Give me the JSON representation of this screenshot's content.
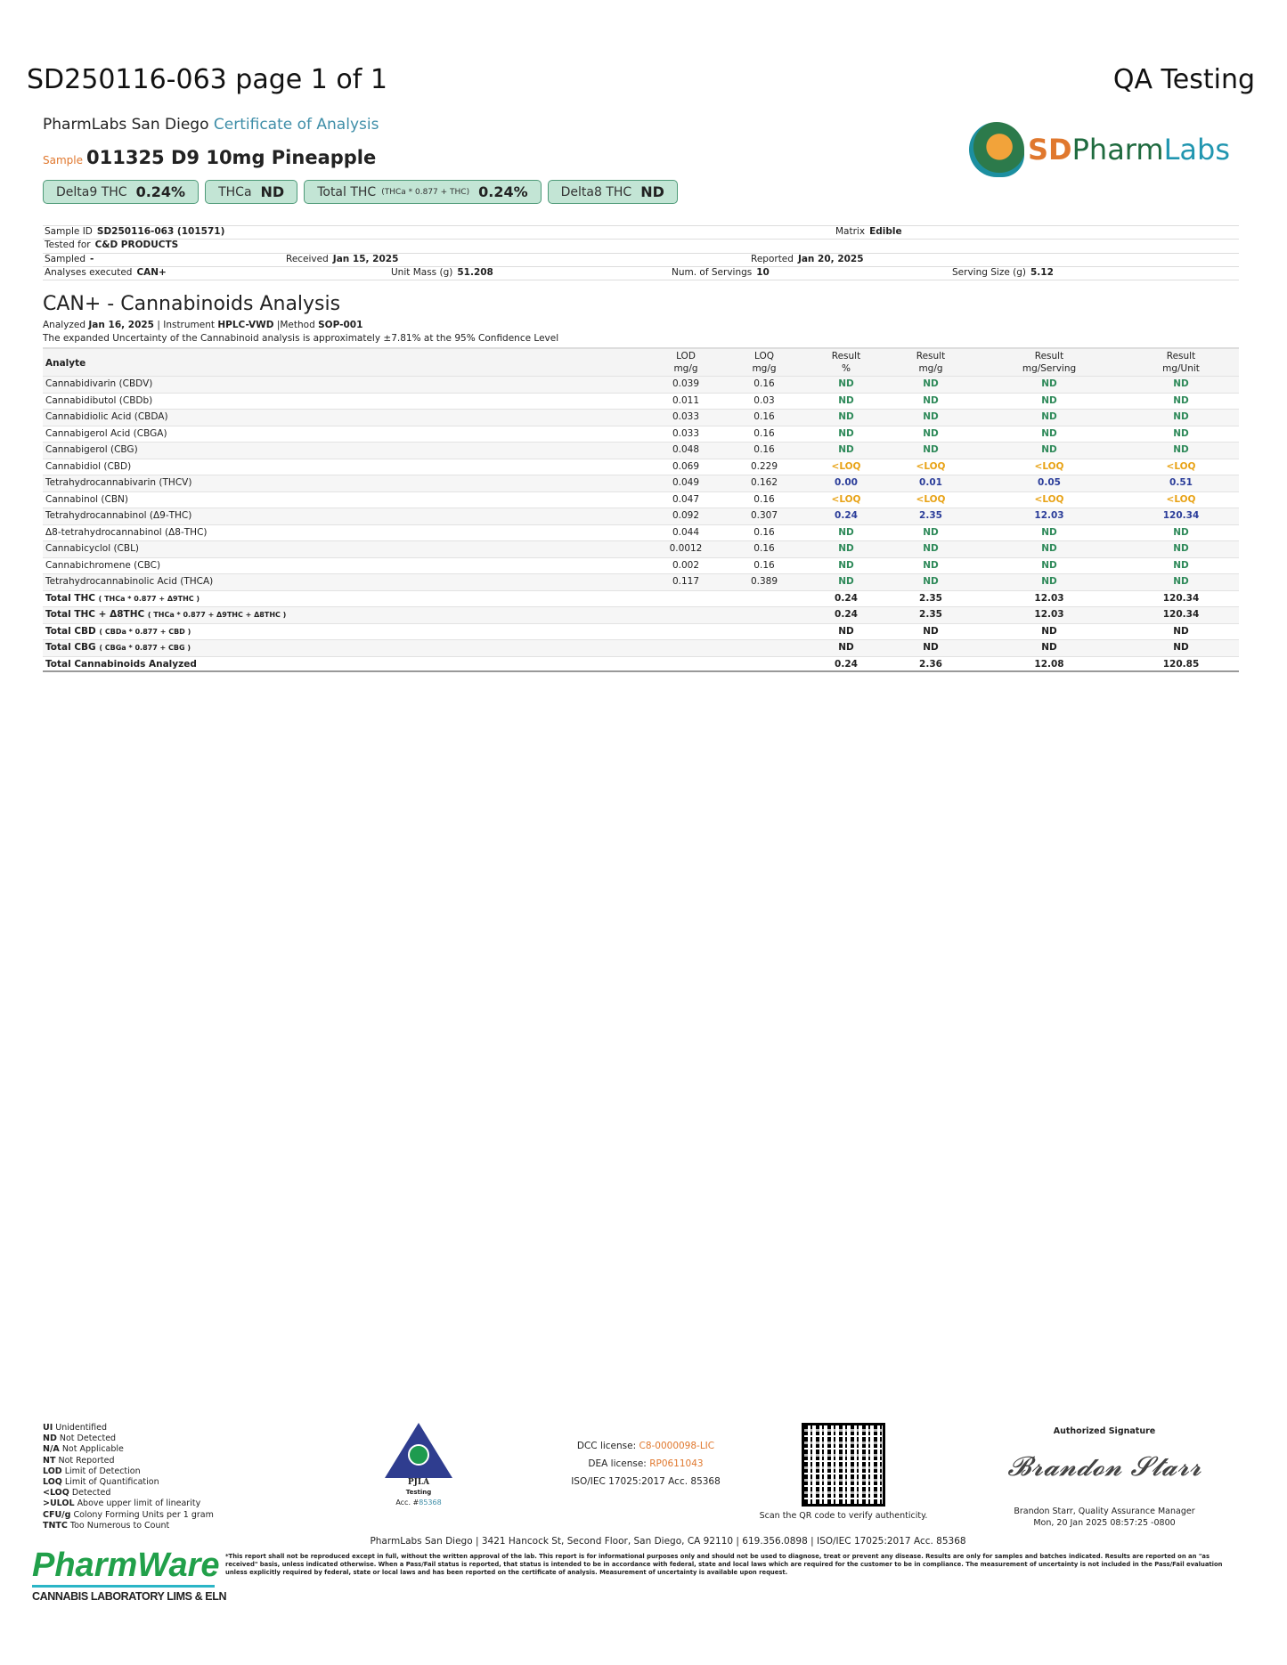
{
  "header": {
    "title": "SD250116-063 page 1 of 1",
    "right_title": "QA Testing",
    "lab_name": "PharmLabs San Diego",
    "doc_type": "Certificate of Analysis",
    "sample_label": "Sample",
    "sample_name": "011325 D9 10mg Pineapple"
  },
  "logo": {
    "sd": "SD",
    "pharm": "Pharm",
    "labs": "Labs"
  },
  "badges": [
    {
      "label": "Delta9 THC",
      "formula": "",
      "value": "0.24%"
    },
    {
      "label": "THCa",
      "formula": "",
      "value": "ND"
    },
    {
      "label": "Total THC",
      "formula": "(THCa * 0.877 + THC)",
      "value": "0.24%"
    },
    {
      "label": "Delta8 THC",
      "formula": "",
      "value": "ND"
    }
  ],
  "info": {
    "sample_id_label": "Sample ID",
    "sample_id": "SD250116-063 (101571)",
    "matrix_label": "Matrix",
    "matrix": "Edible",
    "tested_for_label": "Tested for",
    "tested_for": "C&D PRODUCTS",
    "sampled_label": "Sampled",
    "sampled": "-",
    "received_label": "Received",
    "received": "Jan 15, 2025",
    "reported_label": "Reported",
    "reported": "Jan 20, 2025",
    "analyses_label": "Analyses executed",
    "analyses": "CAN+",
    "unit_mass_label": "Unit Mass (g)",
    "unit_mass": "51.208",
    "servings_label": "Num. of Servings",
    "servings": "10",
    "serving_size_label": "Serving Size (g)",
    "serving_size": "5.12"
  },
  "analysis": {
    "title": "CAN+ - Cannabinoids Analysis",
    "analyzed_label": "Analyzed",
    "analyzed": "Jan 16, 2025",
    "instrument_label": "| Instrument",
    "instrument": "HPLC-VWD",
    "method_label": "|Method",
    "method": "SOP-001",
    "uncertainty": "The expanded Uncertainty of the Cannabinoid analysis is approximately ±7.81% at the 95% Confidence Level"
  },
  "table": {
    "headers": [
      {
        "l1": "Analyte",
        "l2": ""
      },
      {
        "l1": "LOD",
        "l2": "mg/g"
      },
      {
        "l1": "LOQ",
        "l2": "mg/g"
      },
      {
        "l1": "Result",
        "l2": "%"
      },
      {
        "l1": "Result",
        "l2": "mg/g"
      },
      {
        "l1": "Result",
        "l2": "mg/Serving"
      },
      {
        "l1": "Result",
        "l2": "mg/Unit"
      }
    ],
    "rows": [
      {
        "analyte": "Cannabidivarin (CBDV)",
        "lod": "0.039",
        "loq": "0.16",
        "pct": "ND",
        "mgg": "ND",
        "mgs": "ND",
        "mgu": "ND",
        "status": "nd"
      },
      {
        "analyte": "Cannabidibutol (CBDb)",
        "lod": "0.011",
        "loq": "0.03",
        "pct": "ND",
        "mgg": "ND",
        "mgs": "ND",
        "mgu": "ND",
        "status": "nd"
      },
      {
        "analyte": "Cannabidiolic Acid (CBDA)",
        "lod": "0.033",
        "loq": "0.16",
        "pct": "ND",
        "mgg": "ND",
        "mgs": "ND",
        "mgu": "ND",
        "status": "nd"
      },
      {
        "analyte": "Cannabigerol Acid (CBGA)",
        "lod": "0.033",
        "loq": "0.16",
        "pct": "ND",
        "mgg": "ND",
        "mgs": "ND",
        "mgu": "ND",
        "status": "nd"
      },
      {
        "analyte": "Cannabigerol (CBG)",
        "lod": "0.048",
        "loq": "0.16",
        "pct": "ND",
        "mgg": "ND",
        "mgs": "ND",
        "mgu": "ND",
        "status": "nd"
      },
      {
        "analyte": "Cannabidiol (CBD)",
        "lod": "0.069",
        "loq": "0.229",
        "pct": "<LOQ",
        "mgg": "<LOQ",
        "mgs": "<LOQ",
        "mgu": "<LOQ",
        "status": "loq"
      },
      {
        "analyte": "Tetrahydrocannabivarin (THCV)",
        "lod": "0.049",
        "loq": "0.162",
        "pct": "0.00",
        "mgg": "0.01",
        "mgs": "0.05",
        "mgu": "0.51",
        "status": "val"
      },
      {
        "analyte": "Cannabinol (CBN)",
        "lod": "0.047",
        "loq": "0.16",
        "pct": "<LOQ",
        "mgg": "<LOQ",
        "mgs": "<LOQ",
        "mgu": "<LOQ",
        "status": "loq"
      },
      {
        "analyte": "Tetrahydrocannabinol (Δ9-THC)",
        "lod": "0.092",
        "loq": "0.307",
        "pct": "0.24",
        "mgg": "2.35",
        "mgs": "12.03",
        "mgu": "120.34",
        "status": "val"
      },
      {
        "analyte": "Δ8-tetrahydrocannabinol (Δ8-THC)",
        "lod": "0.044",
        "loq": "0.16",
        "pct": "ND",
        "mgg": "ND",
        "mgs": "ND",
        "mgu": "ND",
        "status": "nd"
      },
      {
        "analyte": "Cannabicyclol (CBL)",
        "lod": "0.0012",
        "loq": "0.16",
        "pct": "ND",
        "mgg": "ND",
        "mgs": "ND",
        "mgu": "ND",
        "status": "nd"
      },
      {
        "analyte": "Cannabichromene (CBC)",
        "lod": "0.002",
        "loq": "0.16",
        "pct": "ND",
        "mgg": "ND",
        "mgs": "ND",
        "mgu": "ND",
        "status": "nd"
      },
      {
        "analyte": "Tetrahydrocannabinolic Acid (THCA)",
        "lod": "0.117",
        "loq": "0.389",
        "pct": "ND",
        "mgg": "ND",
        "mgs": "ND",
        "mgu": "ND",
        "status": "nd"
      }
    ],
    "totals": [
      {
        "analyte": "Total THC",
        "formula": "( THCa * 0.877 + Δ9THC )",
        "pct": "0.24",
        "mgg": "2.35",
        "mgs": "12.03",
        "mgu": "120.34"
      },
      {
        "analyte": "Total THC + Δ8THC",
        "formula": "( THCa * 0.877 + Δ9THC + Δ8THC )",
        "pct": "0.24",
        "mgg": "2.35",
        "mgs": "12.03",
        "mgu": "120.34"
      },
      {
        "analyte": "Total CBD",
        "formula": "( CBDa * 0.877 + CBD )",
        "pct": "ND",
        "mgg": "ND",
        "mgs": "ND",
        "mgu": "ND"
      },
      {
        "analyte": "Total CBG",
        "formula": "( CBGa * 0.877 + CBG )",
        "pct": "ND",
        "mgg": "ND",
        "mgs": "ND",
        "mgu": "ND"
      },
      {
        "analyte": "Total Cannabinoids Analyzed",
        "formula": "",
        "pct": "0.24",
        "mgg": "2.36",
        "mgs": "12.08",
        "mgu": "120.85"
      }
    ]
  },
  "legend": [
    {
      "abbr": "UI",
      "text": "Unidentified"
    },
    {
      "abbr": "ND",
      "text": "Not Detected"
    },
    {
      "abbr": "N/A",
      "text": "Not Applicable"
    },
    {
      "abbr": "NT",
      "text": "Not Reported"
    },
    {
      "abbr": "LOD",
      "text": "Limit of Detection"
    },
    {
      "abbr": "LOQ",
      "text": "Limit of Quantification"
    },
    {
      "abbr": "<LOQ",
      "text": "Detected"
    },
    {
      "abbr": ">ULOL",
      "text": "Above upper limit of linearity"
    },
    {
      "abbr": "CFU/g",
      "text": "Colony Forming Units per 1 gram"
    },
    {
      "abbr": "TNTC",
      "text": "Too Numerous to Count"
    }
  ],
  "pjla": {
    "name": "PJLA",
    "sub": "Testing",
    "acc_label": "Acc. #",
    "acc": "85368"
  },
  "licenses": {
    "dcc_label": "DCC license:",
    "dcc": "C8-0000098-LIC",
    "dea_label": "DEA license:",
    "dea": "RP0611043",
    "iso": "ISO/IEC 17025:2017 Acc. 85368"
  },
  "qr": {
    "caption": "Scan the QR code to verify authenticity."
  },
  "signature": {
    "label": "Authorized Signature",
    "script": "Brandon Starr",
    "name": "Brandon Starr, Quality Assurance Manager",
    "date": "Mon, 20 Jan 2025 08:57:25 -0800"
  },
  "footer": {
    "address": "PharmLabs San Diego | 3421 Hancock St, Second Floor, San Diego, CA 92110 | 619.356.0898 | ISO/IEC 17025:2017 Acc. 85368",
    "disclaimer": "*This report shall not be reproduced except in full, without the written approval of the lab. This report is for informational purposes only and should not be used to diagnose, treat or prevent any disease. Results are only for samples and batches indicated. Results are reported on an \"as received\" basis, unless indicated otherwise. When a Pass/Fail status is reported, that status is intended to be in accordance with federal, state and local laws which are required for the customer to be in compliance. The measurement of uncertainty is not included in the Pass/Fail evaluation unless explicitly required by federal, state or local laws and has been reported on the certificate of analysis. Measurement of uncertainty is available upon request.",
    "pharmware": "PharmWare",
    "pharmware_sub": "CANNABIS LABORATORY LIMS & ELN"
  },
  "colors": {
    "nd": "#2f8a5a",
    "loq": "#e8a317",
    "value": "#2c3e9a",
    "badge_bg": "#c3e5d5",
    "accent": "#3f8ea8",
    "orange": "#e0782e"
  }
}
